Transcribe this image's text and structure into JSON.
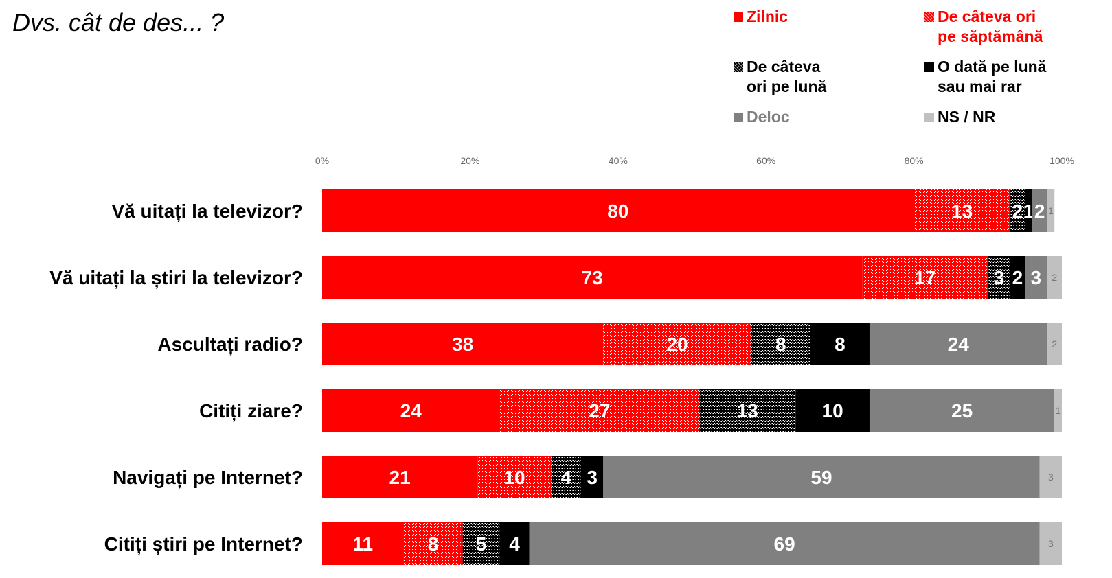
{
  "title": "Dvs. cât de des... ?",
  "chart_data": {
    "type": "bar",
    "orientation": "horizontal",
    "stacked": true,
    "xlim": [
      0,
      100
    ],
    "x_ticks": [
      "0%",
      "20%",
      "40%",
      "60%",
      "80%",
      "100%"
    ],
    "grid": false,
    "legend_position": "top-right",
    "categories": [
      "Vă uitați la televizor?",
      "Vă uitați la știri la televizor?",
      "Ascultați radio?",
      "Citiți ziare?",
      "Navigați pe Internet?",
      "Citiți știri pe Internet?"
    ],
    "series": [
      {
        "name": "Zilnic",
        "color": "#ff0000",
        "pattern": "solid",
        "legend_label_color": "#ff0000",
        "values": [
          80,
          73,
          38,
          24,
          21,
          11
        ]
      },
      {
        "name": "De câteva ori\npe săptămână",
        "color": "#ff0000",
        "pattern": "dotted",
        "legend_label_color": "#ff0000",
        "values": [
          13,
          17,
          20,
          27,
          10,
          8
        ]
      },
      {
        "name": "De câteva\nori pe lună",
        "color": "#000000",
        "pattern": "checker",
        "legend_label_color": "#000000",
        "values": [
          2,
          3,
          8,
          13,
          4,
          5
        ]
      },
      {
        "name": "O dată pe lună\nsau mai rar",
        "color": "#000000",
        "pattern": "solid",
        "legend_label_color": "#000000",
        "values": [
          1,
          2,
          8,
          10,
          3,
          4
        ]
      },
      {
        "name": "Deloc",
        "color": "#808080",
        "pattern": "solid",
        "legend_label_color": "#808080",
        "values": [
          2,
          3,
          24,
          25,
          59,
          69
        ]
      },
      {
        "name": "NS / NR",
        "color": "#c0c0c0",
        "pattern": "solid",
        "legend_label_color": "#000000",
        "values": [
          1,
          2,
          2,
          1,
          3,
          3
        ]
      }
    ]
  }
}
